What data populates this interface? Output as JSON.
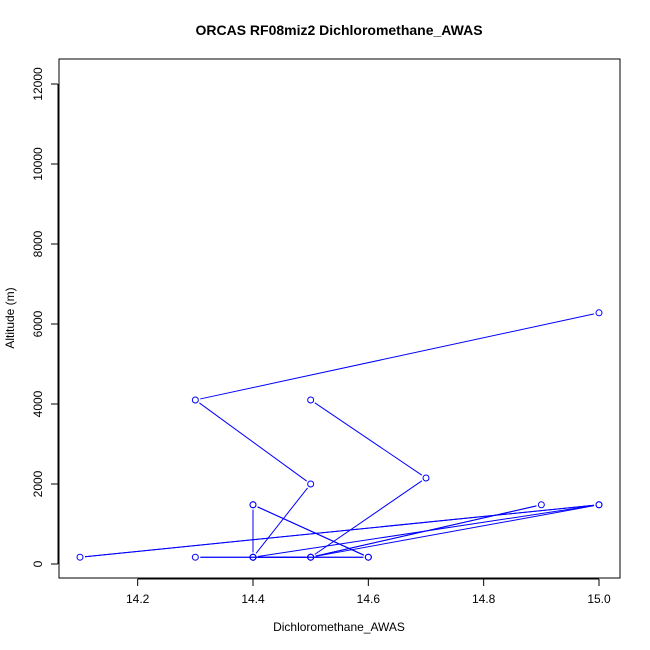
{
  "chart_data": {
    "type": "line",
    "title": "ORCAS RF08miz2 Dichloromethane_AWAS",
    "xlabel": "Dichloromethane_AWAS",
    "ylabel": "Altitude (m)",
    "xlim": [
      14.1,
      15.0
    ],
    "ylim": [
      0,
      12000
    ],
    "xticks": [
      14.2,
      14.4,
      14.6,
      14.8,
      15.0
    ],
    "xtick_labels": [
      "14.2",
      "14.4",
      "14.6",
      "14.8",
      "15.0"
    ],
    "yticks": [
      0,
      2000,
      4000,
      6000,
      8000,
      10000,
      12000
    ],
    "ytick_labels": [
      "0",
      "2000",
      "4000",
      "6000",
      "8000",
      "10000",
      "12000"
    ],
    "grid": false,
    "color": "#0000ff",
    "series": [
      {
        "points": [
          [
            15.0,
            6280
          ],
          [
            14.3,
            4100
          ],
          [
            14.5,
            2000
          ],
          [
            14.4,
            170
          ],
          [
            14.4,
            1480
          ],
          [
            14.4,
            170
          ],
          [
            14.6,
            170
          ],
          [
            14.4,
            1480
          ],
          [
            14.6,
            170
          ],
          [
            14.3,
            170
          ],
          [
            14.5,
            170
          ],
          [
            14.4,
            170
          ],
          [
            15.0,
            1480
          ],
          [
            14.1,
            170
          ],
          [
            15.0,
            1480
          ],
          [
            14.5,
            170
          ],
          [
            14.9,
            1480
          ],
          [
            14.5,
            170
          ],
          [
            14.7,
            2150
          ],
          [
            14.5,
            4100
          ]
        ]
      }
    ]
  }
}
